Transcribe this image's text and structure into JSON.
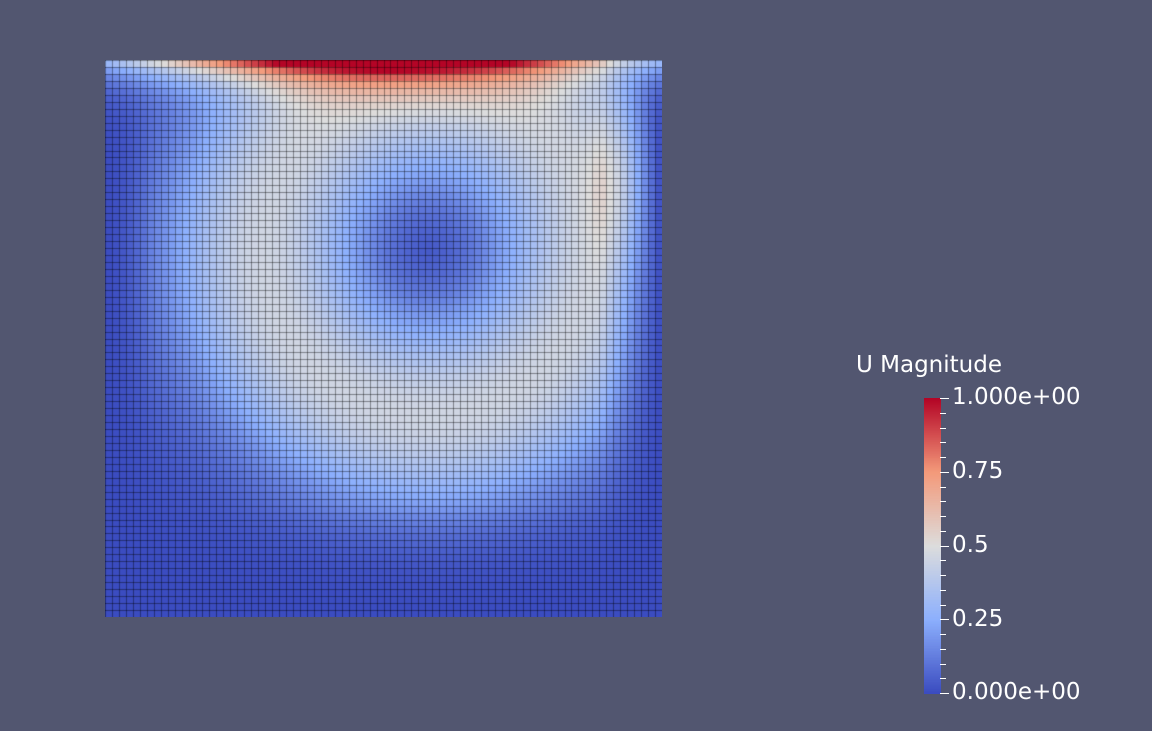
{
  "scalar_bar": {
    "title": "U Magnitude",
    "range": [
      0,
      1
    ],
    "labels": [
      {
        "text": "1.000e+00",
        "value": 1.0
      },
      {
        "text": "0.75",
        "value": 0.75
      },
      {
        "text": "0.5",
        "value": 0.5
      },
      {
        "text": "0.25",
        "value": 0.25
      },
      {
        "text": "0.000e+00",
        "value": 0.0
      }
    ],
    "colormap": [
      "#3b4cc0",
      "#8db0fe",
      "#dddddd",
      "#f49a7b",
      "#b40426"
    ]
  },
  "colors": {
    "background": "#525670",
    "mesh_lines": "#000000"
  }
}
